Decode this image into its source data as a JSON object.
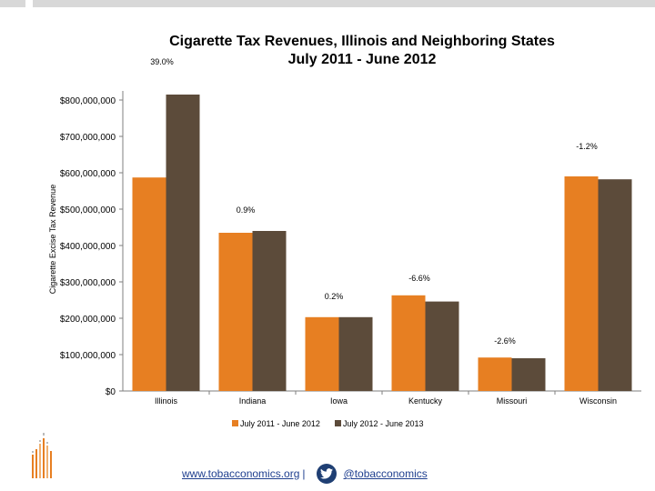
{
  "chart_data": {
    "type": "bar",
    "title_line1": "Cigarette Tax Revenues, Illinois and Neighboring States",
    "title_line2": "July 2011 - June 2012",
    "ylabel": "Cigarette Excise Tax Revenue",
    "xlabel": "",
    "ylim": [
      0,
      800000000
    ],
    "yticks": [
      0,
      100000000,
      200000000,
      300000000,
      400000000,
      500000000,
      600000000,
      700000000,
      800000000
    ],
    "ytick_labels": [
      "$0",
      "$100,000,000",
      "$200,000,000",
      "$300,000,000",
      "$400,000,000",
      "$500,000,000",
      "$600,000,000",
      "$700,000,000",
      "$800,000,000"
    ],
    "categories": [
      "Illinois",
      "Indiana",
      "Iowa",
      "Kentucky",
      "Missouri",
      "Wisconsin"
    ],
    "series": [
      {
        "name": "July 2011 - June 2012",
        "color": "#e77f22",
        "values": [
          587000000,
          435000000,
          203000000,
          263000000,
          92000000,
          590000000
        ]
      },
      {
        "name": "July 2012 - June 2013",
        "color": "#5c4b3a",
        "values": [
          815000000,
          440000000,
          203000000,
          246000000,
          90000000,
          582000000
        ]
      }
    ],
    "annotations": [
      "39.0%",
      "0.9%",
      "0.2%",
      "-6.6%",
      "-2.6%",
      "-1.2%"
    ],
    "legend": "bottom",
    "grid": false
  },
  "footer": {
    "website": "www.tobacconomics.org",
    "separator": "|",
    "twitter_handle": "@tobacconomics",
    "twitter_icon": "twitter-bird-icon"
  },
  "logo_icon": "tobacconomics-logo-icon"
}
